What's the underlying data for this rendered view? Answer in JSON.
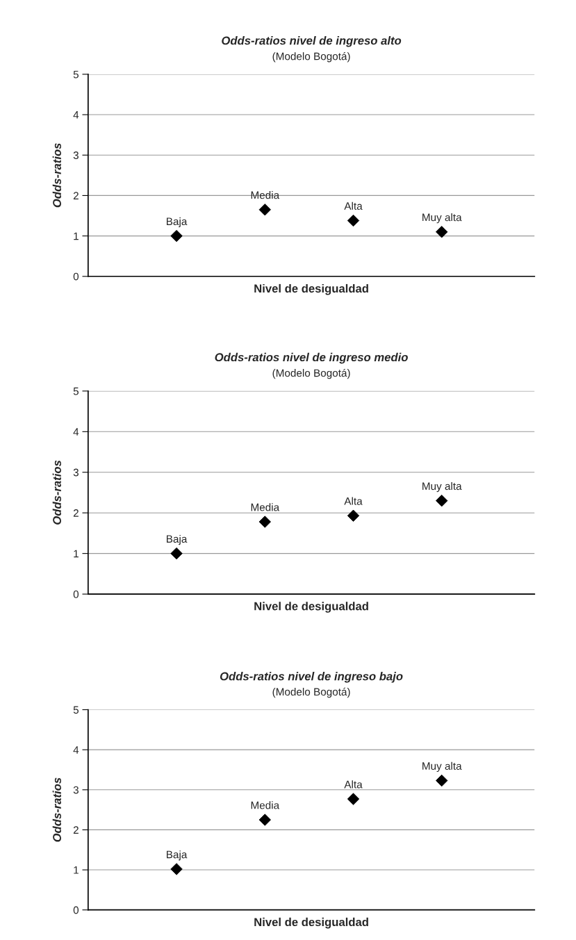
{
  "chart_data": [
    {
      "type": "scatter",
      "title": "Odds-ratios nivel de ingreso alto",
      "subtitle": "(Modelo Bogotá)",
      "xlabel": "Nivel de desigualdad",
      "ylabel": "Odds-ratios",
      "categories": [
        "Baja",
        "Media",
        "Alta",
        "Muy alta"
      ],
      "series": [
        {
          "color": "#000000",
          "values": [
            1.0,
            1.65,
            1.38,
            1.1
          ]
        }
      ],
      "ylim": [
        0,
        5
      ],
      "yticks": [
        0,
        1,
        2,
        3,
        4,
        5
      ],
      "grid": "y",
      "marker": "diamond",
      "tick_labels": "y"
    },
    {
      "type": "scatter",
      "title": "Odds-ratios nivel de ingreso medio",
      "subtitle": "(Modelo Bogotá)",
      "xlabel": "Nivel de desigualdad",
      "ylabel": "Odds-ratios",
      "categories": [
        "Baja",
        "Media",
        "Alta",
        "Muy alta"
      ],
      "series": [
        {
          "color": "#000000",
          "values": [
            1.0,
            1.78,
            1.93,
            2.3
          ]
        }
      ],
      "ylim": [
        0,
        5
      ],
      "yticks": [
        0,
        1,
        2,
        3,
        4,
        5
      ],
      "grid": "y",
      "marker": "diamond",
      "tick_labels": "y"
    },
    {
      "type": "scatter",
      "title": "Odds-ratios nivel de ingreso bajo",
      "subtitle": "(Modelo Bogotá)",
      "xlabel": "Nivel de desigualdad",
      "ylabel": "Odds-ratios",
      "categories": [
        "Baja",
        "Media",
        "Alta",
        "Muy alta"
      ],
      "series": [
        {
          "color": "#000000",
          "values": [
            1.02,
            2.25,
            2.77,
            3.23
          ]
        }
      ],
      "ylim": [
        0,
        5
      ],
      "yticks": [
        0,
        1,
        2,
        3,
        4,
        5
      ],
      "grid": "y",
      "marker": "diamond",
      "tick_labels": "y"
    }
  ]
}
